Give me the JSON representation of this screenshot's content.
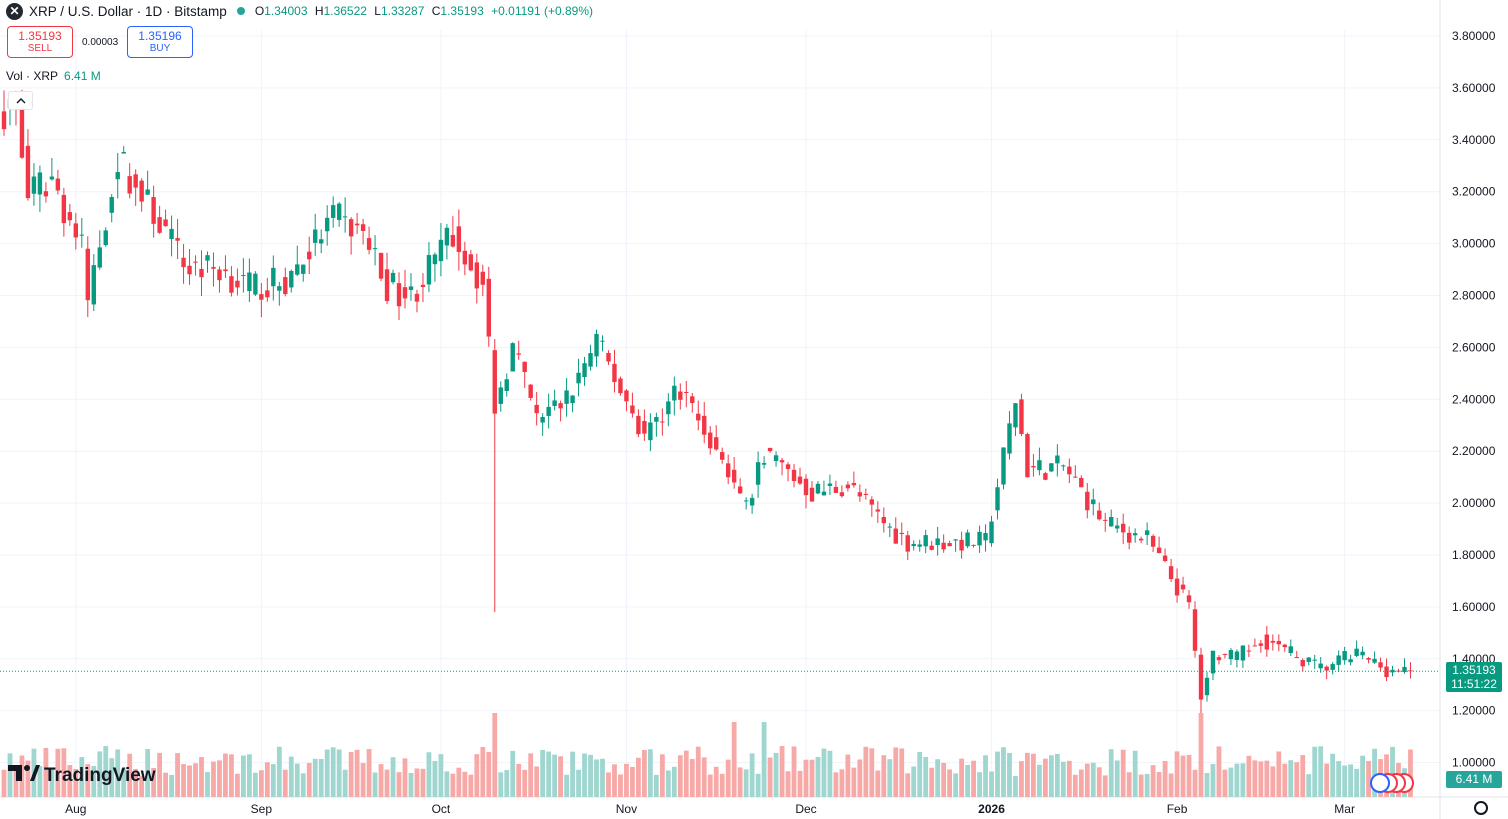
{
  "header": {
    "symbol_logo": "✕",
    "title": "XRP / U.S. Dollar · 1D · Bitstamp",
    "open_label": "O",
    "open": "1.34003",
    "high_label": "H",
    "high": "1.36522",
    "low_label": "L",
    "low": "1.33287",
    "close_label": "C",
    "close": "1.35193",
    "change": "+0.01191 (+0.89%)"
  },
  "trade": {
    "sell_price": "1.35193",
    "sell_label": "SELL",
    "spread": "0.00003",
    "buy_price": "1.35196",
    "buy_label": "BUY"
  },
  "volume_legend": {
    "label": "Vol · XRP",
    "value": "6.41 M"
  },
  "collapse_icon": "chevron-up-icon",
  "logo_text": "TradingView",
  "price_pill": {
    "price": "1.35193",
    "countdown": "11:51:22"
  },
  "volume_pill": "6.41 M",
  "colors": {
    "up": "#089981",
    "down": "#f23645",
    "up_vol": "#9fd6cf",
    "down_vol": "#f7a9a7",
    "grid": "#f0f3fa"
  },
  "chart_data": {
    "type": "candlestick",
    "title": "XRP / U.S. Dollar · 1D · Bitstamp",
    "y_ticks": [
      "3.80000",
      "3.60000",
      "3.40000",
      "3.20000",
      "3.00000",
      "2.80000",
      "2.60000",
      "2.40000",
      "2.20000",
      "2.00000",
      "1.80000",
      "1.60000",
      "1.40000",
      "1.20000",
      "1.00000"
    ],
    "x_ticks": [
      "Aug",
      "Sep",
      "Oct",
      "Nov",
      "Dec",
      "2026",
      "Feb",
      "Mar"
    ],
    "ylim": [
      0.9,
      3.88
    ],
    "last_price": 1.35193,
    "grid": true,
    "anchors_close": [
      {
        "date": "Jul 22",
        "close": 3.52
      },
      {
        "date": "Jul 24",
        "close": 3.18
      },
      {
        "date": "Jul 28",
        "close": 3.25
      },
      {
        "date": "Aug 2",
        "close": 2.98
      },
      {
        "date": "Aug 3",
        "close": 2.78
      },
      {
        "date": "Aug 8",
        "close": 3.33
      },
      {
        "date": "Aug 12",
        "close": 3.18
      },
      {
        "date": "Aug 14",
        "close": 3.12
      },
      {
        "date": "Aug 19",
        "close": 2.92
      },
      {
        "date": "Aug 25",
        "close": 2.9
      },
      {
        "date": "Aug 30",
        "close": 2.83
      },
      {
        "date": "Sep 5",
        "close": 2.85
      },
      {
        "date": "Sep 13",
        "close": 3.1
      },
      {
        "date": "Sep 18",
        "close": 3.04
      },
      {
        "date": "Sep 22",
        "close": 2.84
      },
      {
        "date": "Sep 26",
        "close": 2.8
      },
      {
        "date": "Oct 3",
        "close": 3.04
      },
      {
        "date": "Oct 8",
        "close": 2.84
      },
      {
        "date": "Oct 10",
        "close": 2.38
      },
      {
        "date": "Oct 13",
        "close": 2.6
      },
      {
        "date": "Oct 17",
        "close": 2.32
      },
      {
        "date": "Oct 22",
        "close": 2.4
      },
      {
        "date": "Oct 27",
        "close": 2.62
      },
      {
        "date": "Nov 4",
        "close": 2.26
      },
      {
        "date": "Nov 10",
        "close": 2.45
      },
      {
        "date": "Nov 16",
        "close": 2.2
      },
      {
        "date": "Nov 21",
        "close": 1.98
      },
      {
        "date": "Nov 24",
        "close": 2.2
      },
      {
        "date": "Dec 2",
        "close": 2.04
      },
      {
        "date": "Dec 8",
        "close": 2.07
      },
      {
        "date": "Dec 15",
        "close": 1.9
      },
      {
        "date": "Dec 18",
        "close": 1.85
      },
      {
        "date": "Dec 31",
        "close": 1.85
      },
      {
        "date": "Jan 5",
        "close": 2.4
      },
      {
        "date": "Jan 7",
        "close": 2.13
      },
      {
        "date": "Jan 13",
        "close": 2.14
      },
      {
        "date": "Jan 20",
        "close": 1.92
      },
      {
        "date": "Jan 27",
        "close": 1.86
      },
      {
        "date": "Feb 3",
        "close": 1.6
      },
      {
        "date": "Feb 5",
        "close": 1.25
      },
      {
        "date": "Feb 7",
        "close": 1.42
      },
      {
        "date": "Feb 11",
        "close": 1.4
      },
      {
        "date": "Feb 15",
        "close": 1.48
      },
      {
        "date": "Feb 20",
        "close": 1.42
      },
      {
        "date": "Feb 25",
        "close": 1.36
      },
      {
        "date": "Mar 3",
        "close": 1.42
      },
      {
        "date": "Mar 8",
        "close": 1.36
      },
      {
        "date": "Mar 12",
        "close": 1.35
      }
    ],
    "notable_lows": [
      {
        "date": "Oct 10",
        "low": 1.58
      },
      {
        "date": "Feb 5",
        "low": 1.12
      }
    ]
  }
}
